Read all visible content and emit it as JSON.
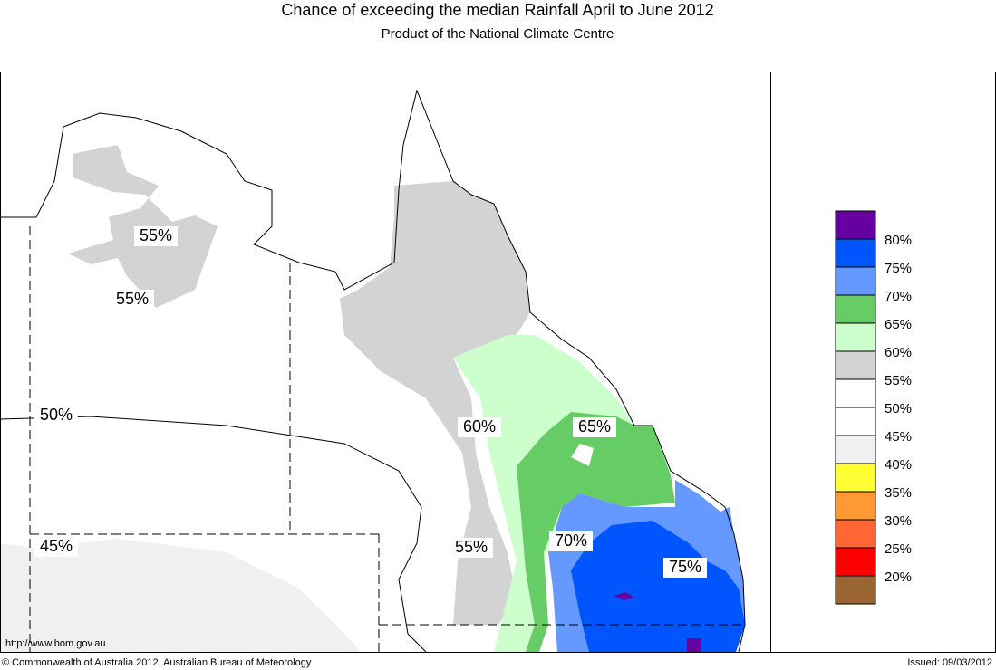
{
  "header": {
    "title": "Chance of exceeding the median Rainfall April to June 2012",
    "subtitle": "Product of the National Climate Centre"
  },
  "map": {
    "labels": [
      "55%",
      "55%",
      "50%",
      "45%",
      "60%",
      "65%",
      "70%",
      "55%",
      "75%"
    ]
  },
  "legend": {
    "colors": [
      "#6600a0",
      "#0055ff",
      "#6699ff",
      "#66cc66",
      "#ccffcc",
      "#d3d3d3",
      "#ffffff",
      "#ffffff",
      "#f0f0f0",
      "#ffff33",
      "#ff9933",
      "#ff6633",
      "#ff0000",
      "#996633"
    ],
    "labels": [
      "80%",
      "75%",
      "70%",
      "65%",
      "60%",
      "55%",
      "50%",
      "45%",
      "40%",
      "35%",
      "30%",
      "25%",
      "20%"
    ]
  },
  "footer": {
    "url": "http://www.bom.gov.au",
    "copyright": "© Commonwealth of Australia 2012, Australian Bureau of Meteorology",
    "issued": "Issued: 09/03/2012"
  }
}
